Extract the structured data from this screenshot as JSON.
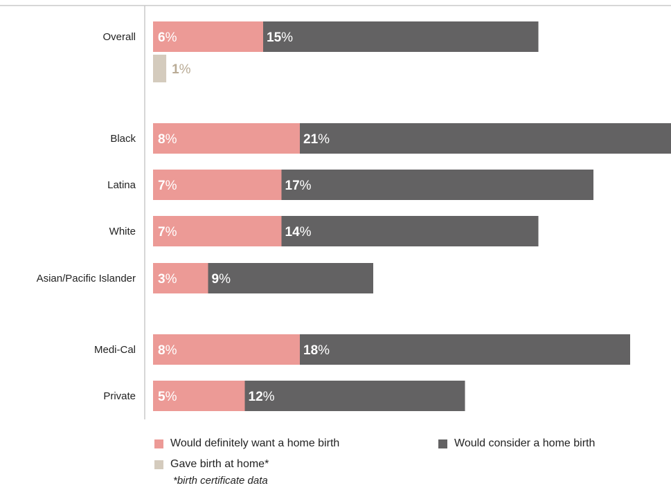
{
  "chart_data": {
    "type": "bar",
    "orientation": "horizontal",
    "stacked": true,
    "categories": [
      "Overall",
      "Black",
      "Latina",
      "White",
      "Asian/Pacific Islander",
      "Medi-Cal",
      "Private"
    ],
    "series": [
      {
        "name": "Would definitely want a home birth",
        "color": "#ec9a96",
        "values": [
          6,
          8,
          7,
          7,
          3,
          8,
          5
        ]
      },
      {
        "name": "Would consider a home birth",
        "color": "#636263",
        "values": [
          15,
          21,
          17,
          14,
          9,
          18,
          12
        ]
      },
      {
        "name": "Gave birth at home*",
        "color": "#d4cbbd",
        "values": [
          1,
          null,
          null,
          null,
          null,
          null,
          null
        ]
      }
    ],
    "value_suffix": "%",
    "legend_note": "*birth certificate data",
    "legend_position": "bottom",
    "grid": false
  }
}
